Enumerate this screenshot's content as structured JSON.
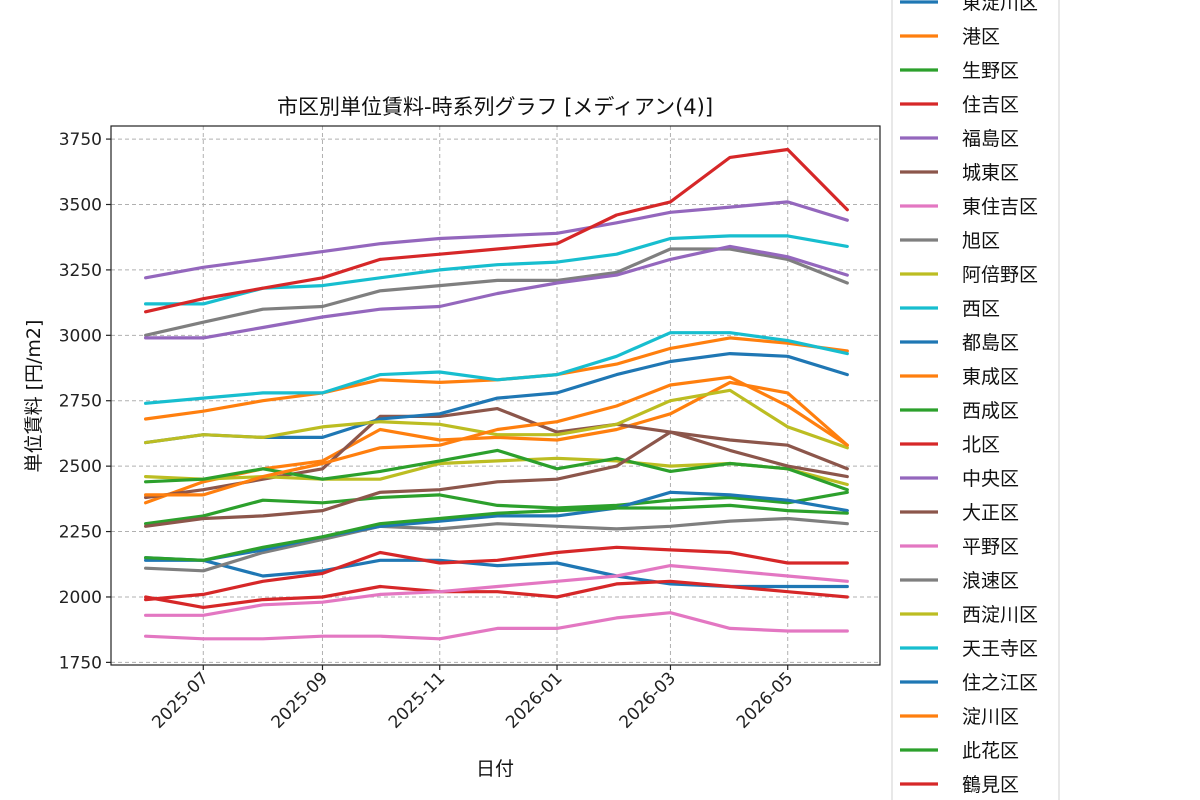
{
  "chart_data": {
    "type": "line",
    "title": "市区別単位賃料-時系列グラフ [メディアン(4)]",
    "xlabel": "日付",
    "ylabel": "単位賃料 [円/m2]",
    "ylim": [
      1740,
      3800
    ],
    "yticks": [
      1750,
      2000,
      2250,
      2500,
      2750,
      3000,
      3250,
      3500,
      3750
    ],
    "xlim": [
      "2025-05-14",
      "2026-06-18"
    ],
    "xticks": [
      "2025-07",
      "2025-09",
      "2025-11",
      "2026-01",
      "2026-03",
      "2026-05"
    ],
    "x": [
      "2025-06-01",
      "2025-07-01",
      "2025-08-01",
      "2025-09-01",
      "2025-10-01",
      "2025-11-01",
      "2025-12-01",
      "2026-01-01",
      "2026-02-01",
      "2026-03-01",
      "2026-04-01",
      "2026-05-01",
      "2026-06-01"
    ],
    "grid": true,
    "legend_position": "outside-right",
    "series": [
      {
        "name": "東淀川区",
        "color": "#1f77b4",
        "values": [
          2150,
          2140,
          2080,
          2100,
          2140,
          2140,
          2120,
          2130,
          2080,
          2050,
          2040,
          2040,
          2040
        ]
      },
      {
        "name": "港区",
        "color": "#ff7f0e",
        "values": [
          2360,
          2440,
          2490,
          2520,
          2640,
          2600,
          2610,
          2600,
          2640,
          2700,
          2820,
          2780,
          2580
        ]
      },
      {
        "name": "生野区",
        "color": "#2ca02c",
        "values": [
          2280,
          2310,
          2370,
          2360,
          2380,
          2390,
          2350,
          2340,
          2350,
          2370,
          2380,
          2360,
          2400
        ]
      },
      {
        "name": "住吉区",
        "color": "#d62728",
        "values": [
          2000,
          1960,
          1990,
          2000,
          2040,
          2020,
          2020,
          2000,
          2050,
          2060,
          2040,
          2020,
          2000
        ]
      },
      {
        "name": "福島区",
        "color": "#9467bd",
        "values": [
          3220,
          3260,
          3290,
          3320,
          3350,
          3370,
          3380,
          3390,
          3430,
          3470,
          3490,
          3510,
          3440
        ]
      },
      {
        "name": "城東区",
        "color": "#8c564b",
        "values": [
          2380,
          2410,
          2450,
          2490,
          2690,
          2690,
          2720,
          2630,
          2660,
          2630,
          2600,
          2580,
          2490
        ]
      },
      {
        "name": "東住吉区",
        "color": "#e377c2",
        "values": [
          1850,
          1840,
          1840,
          1850,
          1850,
          1840,
          1880,
          1880,
          1920,
          1940,
          1880,
          1870,
          1870
        ]
      },
      {
        "name": "旭区",
        "color": "#7f7f7f",
        "values": [
          3000,
          3050,
          3100,
          3110,
          3170,
          3190,
          3210,
          3210,
          3240,
          3330,
          3330,
          3290,
          3200
        ]
      },
      {
        "name": "阿倍野区",
        "color": "#bcbd22",
        "values": [
          2460,
          2450,
          2460,
          2450,
          2450,
          2510,
          2520,
          2530,
          2520,
          2500,
          2510,
          2490,
          2430
        ]
      },
      {
        "name": "西区",
        "color": "#17becf",
        "values": [
          3120,
          3120,
          3180,
          3190,
          3220,
          3250,
          3270,
          3280,
          3310,
          3370,
          3380,
          3380,
          3340
        ]
      },
      {
        "name": "都島区",
        "color": "#1f77b4",
        "values": [
          2590,
          2620,
          2610,
          2610,
          2680,
          2700,
          2760,
          2780,
          2850,
          2900,
          2930,
          2920,
          2850
        ]
      },
      {
        "name": "東成区",
        "color": "#ff7f0e",
        "values": [
          2680,
          2710,
          2750,
          2780,
          2830,
          2820,
          2830,
          2850,
          2890,
          2950,
          2990,
          2970,
          2940
        ]
      },
      {
        "name": "西成区",
        "color": "#2ca02c",
        "values": [
          2440,
          2450,
          2490,
          2450,
          2480,
          2520,
          2560,
          2490,
          2530,
          2480,
          2510,
          2490,
          2410
        ]
      },
      {
        "name": "北区",
        "color": "#d62728",
        "values": [
          3090,
          3140,
          3180,
          3220,
          3290,
          3310,
          3330,
          3350,
          3460,
          3510,
          3680,
          3710,
          3480
        ]
      },
      {
        "name": "中央区",
        "color": "#9467bd",
        "values": [
          2990,
          2990,
          3030,
          3070,
          3100,
          3110,
          3160,
          3200,
          3230,
          3290,
          3340,
          3300,
          3230
        ]
      },
      {
        "name": "大正区",
        "color": "#8c564b",
        "values": [
          2270,
          2300,
          2310,
          2330,
          2400,
          2410,
          2440,
          2450,
          2500,
          2630,
          2560,
          2500,
          2460
        ]
      },
      {
        "name": "平野区",
        "color": "#e377c2",
        "values": [
          1930,
          1930,
          1970,
          1980,
          2010,
          2020,
          2040,
          2060,
          2080,
          2120,
          2100,
          2080,
          2060
        ]
      },
      {
        "name": "浪速区",
        "color": "#7f7f7f",
        "values": [
          2110,
          2100,
          2170,
          2220,
          2270,
          2260,
          2280,
          2270,
          2260,
          2270,
          2290,
          2300,
          2280
        ]
      },
      {
        "name": "西淀川区",
        "color": "#bcbd22",
        "values": [
          2590,
          2620,
          2610,
          2650,
          2670,
          2660,
          2620,
          2620,
          2660,
          2750,
          2790,
          2650,
          2570
        ]
      },
      {
        "name": "天王寺区",
        "color": "#17becf",
        "values": [
          2740,
          2760,
          2780,
          2780,
          2850,
          2860,
          2830,
          2850,
          2920,
          3010,
          3010,
          2980,
          2930
        ]
      },
      {
        "name": "住之江区",
        "color": "#1f77b4",
        "values": [
          2140,
          2140,
          2180,
          2230,
          2270,
          2290,
          2310,
          2310,
          2340,
          2400,
          2390,
          2370,
          2330
        ]
      },
      {
        "name": "淀川区",
        "color": "#ff7f0e",
        "values": [
          2390,
          2390,
          2460,
          2510,
          2570,
          2580,
          2640,
          2670,
          2730,
          2810,
          2840,
          2730,
          2580
        ]
      },
      {
        "name": "此花区",
        "color": "#2ca02c",
        "values": [
          2150,
          2140,
          2190,
          2230,
          2280,
          2300,
          2320,
          2330,
          2340,
          2340,
          2350,
          2330,
          2320
        ]
      },
      {
        "name": "鶴見区",
        "color": "#d62728",
        "values": [
          1990,
          2010,
          2060,
          2090,
          2170,
          2130,
          2140,
          2170,
          2190,
          2180,
          2170,
          2130,
          2130
        ]
      }
    ]
  }
}
